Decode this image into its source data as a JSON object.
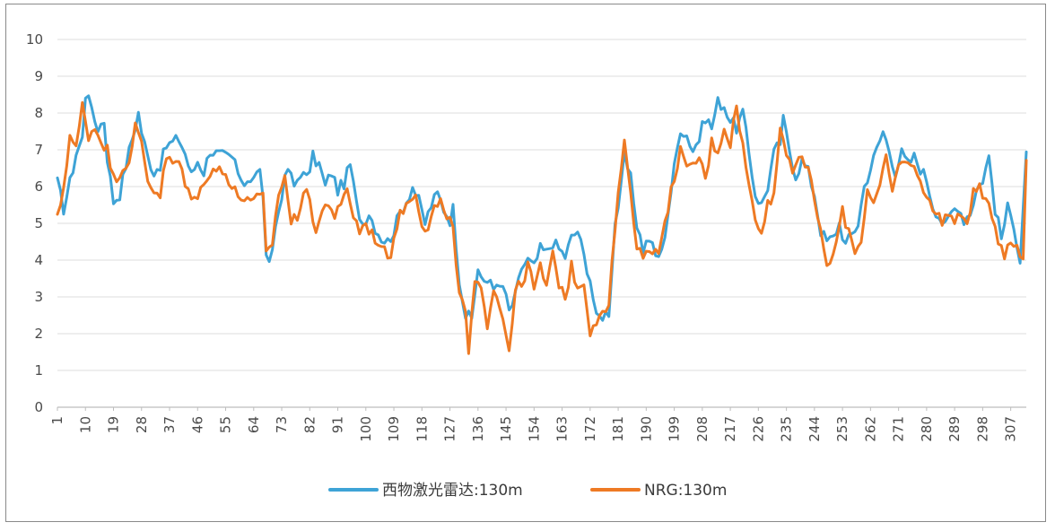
{
  "chart_data": {
    "type": "line",
    "title": "",
    "xlabel": "",
    "ylabel": "",
    "ylim": [
      0,
      10
    ],
    "yticks": [
      0,
      1,
      2,
      3,
      4,
      5,
      6,
      7,
      8,
      9,
      10
    ],
    "xlim": [
      1,
      312
    ],
    "xticks": [
      1,
      10,
      19,
      28,
      37,
      46,
      55,
      64,
      73,
      82,
      91,
      100,
      109,
      118,
      127,
      136,
      145,
      154,
      163,
      172,
      181,
      190,
      199,
      208,
      217,
      226,
      235,
      244,
      253,
      262,
      271,
      280,
      289,
      298,
      307
    ],
    "grid": "horizontal",
    "legend_position": "bottom",
    "series": [
      {
        "name": "西物激光雷达:130m",
        "color": "#3ea3d6",
        "anchors": [
          [
            1,
            6.1
          ],
          [
            3,
            5.4
          ],
          [
            5,
            6.1
          ],
          [
            7,
            6.9
          ],
          [
            9,
            7.3
          ],
          [
            10,
            8.5
          ],
          [
            11,
            8.6
          ],
          [
            12,
            8.0
          ],
          [
            14,
            7.6
          ],
          [
            16,
            7.8
          ],
          [
            17,
            6.8
          ],
          [
            19,
            5.6
          ],
          [
            21,
            5.8
          ],
          [
            23,
            6.6
          ],
          [
            25,
            7.3
          ],
          [
            27,
            8.0
          ],
          [
            28,
            7.5
          ],
          [
            30,
            6.8
          ],
          [
            32,
            6.4
          ],
          [
            34,
            6.6
          ],
          [
            36,
            7.1
          ],
          [
            38,
            7.2
          ],
          [
            40,
            7.3
          ],
          [
            42,
            6.9
          ],
          [
            44,
            6.3
          ],
          [
            46,
            6.7
          ],
          [
            48,
            6.4
          ],
          [
            50,
            7.0
          ],
          [
            52,
            6.9
          ],
          [
            55,
            6.8
          ],
          [
            58,
            6.7
          ],
          [
            60,
            6.0
          ],
          [
            62,
            6.2
          ],
          [
            64,
            6.3
          ],
          [
            66,
            6.4
          ],
          [
            67,
            5.8
          ],
          [
            68,
            4.0
          ],
          [
            69,
            3.8
          ],
          [
            71,
            4.9
          ],
          [
            73,
            5.8
          ],
          [
            75,
            6.5
          ],
          [
            77,
            6.0
          ],
          [
            79,
            6.4
          ],
          [
            81,
            6.2
          ],
          [
            83,
            6.8
          ],
          [
            85,
            6.6
          ],
          [
            87,
            6.0
          ],
          [
            89,
            6.4
          ],
          [
            91,
            5.9
          ],
          [
            93,
            6.1
          ],
          [
            95,
            6.6
          ],
          [
            97,
            5.5
          ],
          [
            99,
            5.0
          ],
          [
            101,
            5.3
          ],
          [
            103,
            4.9
          ],
          [
            105,
            4.6
          ],
          [
            107,
            4.5
          ],
          [
            109,
            4.8
          ],
          [
            111,
            5.3
          ],
          [
            113,
            5.6
          ],
          [
            115,
            6.0
          ],
          [
            117,
            5.6
          ],
          [
            119,
            5.0
          ],
          [
            121,
            5.5
          ],
          [
            123,
            5.8
          ],
          [
            125,
            5.4
          ],
          [
            127,
            5.1
          ],
          [
            128,
            5.4
          ],
          [
            130,
            3.5
          ],
          [
            132,
            2.5
          ],
          [
            134,
            2.4
          ],
          [
            136,
            3.8
          ],
          [
            138,
            3.3
          ],
          [
            140,
            3.5
          ],
          [
            142,
            3.2
          ],
          [
            144,
            3.3
          ],
          [
            146,
            2.6
          ],
          [
            148,
            3.0
          ],
          [
            150,
            3.8
          ],
          [
            152,
            4.0
          ],
          [
            154,
            3.8
          ],
          [
            156,
            4.3
          ],
          [
            158,
            4.2
          ],
          [
            160,
            4.5
          ],
          [
            162,
            4.3
          ],
          [
            164,
            4.1
          ],
          [
            166,
            4.6
          ],
          [
            168,
            4.8
          ],
          [
            170,
            4.1
          ],
          [
            172,
            3.5
          ],
          [
            174,
            2.4
          ],
          [
            176,
            2.5
          ],
          [
            178,
            2.6
          ],
          [
            180,
            5.0
          ],
          [
            182,
            6.0
          ],
          [
            183,
            6.8
          ],
          [
            185,
            6.2
          ],
          [
            187,
            5.0
          ],
          [
            189,
            4.3
          ],
          [
            191,
            4.6
          ],
          [
            193,
            4.1
          ],
          [
            195,
            4.2
          ],
          [
            197,
            5.3
          ],
          [
            199,
            6.5
          ],
          [
            201,
            7.6
          ],
          [
            203,
            7.4
          ],
          [
            205,
            7.0
          ],
          [
            207,
            7.3
          ],
          [
            209,
            7.9
          ],
          [
            211,
            7.6
          ],
          [
            213,
            8.3
          ],
          [
            215,
            8.2
          ],
          [
            217,
            7.8
          ],
          [
            219,
            7.6
          ],
          [
            221,
            8.0
          ],
          [
            223,
            6.9
          ],
          [
            225,
            5.8
          ],
          [
            227,
            5.5
          ],
          [
            229,
            6.0
          ],
          [
            231,
            6.9
          ],
          [
            233,
            7.2
          ],
          [
            234,
            7.8
          ],
          [
            236,
            7.0
          ],
          [
            238,
            6.3
          ],
          [
            240,
            6.7
          ],
          [
            242,
            6.4
          ],
          [
            244,
            5.8
          ],
          [
            246,
            4.8
          ],
          [
            248,
            4.5
          ],
          [
            250,
            4.6
          ],
          [
            252,
            5.0
          ],
          [
            254,
            4.4
          ],
          [
            256,
            4.7
          ],
          [
            258,
            5.0
          ],
          [
            260,
            6.0
          ],
          [
            262,
            6.5
          ],
          [
            264,
            7.0
          ],
          [
            266,
            7.5
          ],
          [
            268,
            7.0
          ],
          [
            270,
            6.4
          ],
          [
            272,
            6.9
          ],
          [
            274,
            6.6
          ],
          [
            276,
            6.8
          ],
          [
            278,
            6.5
          ],
          [
            280,
            6.2
          ],
          [
            282,
            5.5
          ],
          [
            284,
            5.2
          ],
          [
            286,
            4.9
          ],
          [
            288,
            5.3
          ],
          [
            290,
            5.5
          ],
          [
            292,
            5.1
          ],
          [
            294,
            5.3
          ],
          [
            296,
            5.9
          ],
          [
            298,
            6.2
          ],
          [
            300,
            6.8
          ],
          [
            302,
            5.4
          ],
          [
            304,
            4.6
          ],
          [
            306,
            5.4
          ],
          [
            308,
            5.0
          ],
          [
            310,
            4.0
          ],
          [
            312,
            6.9
          ]
        ]
      },
      {
        "name": "NRG:130m",
        "color": "#ee7a24",
        "anchors": [
          [
            1,
            5.1
          ],
          [
            3,
            6.0
          ],
          [
            5,
            7.4
          ],
          [
            7,
            7.0
          ],
          [
            9,
            8.2
          ],
          [
            11,
            7.4
          ],
          [
            13,
            7.6
          ],
          [
            15,
            7.3
          ],
          [
            17,
            7.0
          ],
          [
            19,
            6.2
          ],
          [
            21,
            6.4
          ],
          [
            23,
            6.6
          ],
          [
            25,
            7.0
          ],
          [
            26,
            7.6
          ],
          [
            28,
            7.2
          ],
          [
            30,
            6.2
          ],
          [
            32,
            5.9
          ],
          [
            34,
            5.8
          ],
          [
            36,
            6.8
          ],
          [
            38,
            6.6
          ],
          [
            40,
            6.7
          ],
          [
            42,
            6.0
          ],
          [
            44,
            5.8
          ],
          [
            46,
            5.6
          ],
          [
            48,
            6.2
          ],
          [
            50,
            6.4
          ],
          [
            52,
            6.5
          ],
          [
            55,
            6.3
          ],
          [
            58,
            6.0
          ],
          [
            60,
            5.5
          ],
          [
            62,
            5.8
          ],
          [
            64,
            5.6
          ],
          [
            66,
            5.7
          ],
          [
            67,
            5.7
          ],
          [
            68,
            4.1
          ],
          [
            70,
            4.5
          ],
          [
            72,
            5.8
          ],
          [
            74,
            6.3
          ],
          [
            76,
            5.0
          ],
          [
            78,
            5.2
          ],
          [
            80,
            5.9
          ],
          [
            82,
            5.6
          ],
          [
            84,
            4.8
          ],
          [
            86,
            5.3
          ],
          [
            88,
            5.6
          ],
          [
            90,
            5.2
          ],
          [
            92,
            5.4
          ],
          [
            94,
            6.0
          ],
          [
            96,
            5.2
          ],
          [
            98,
            4.8
          ],
          [
            100,
            5.0
          ],
          [
            102,
            4.7
          ],
          [
            104,
            4.5
          ],
          [
            106,
            4.2
          ],
          [
            108,
            4.2
          ],
          [
            110,
            5.0
          ],
          [
            112,
            5.4
          ],
          [
            114,
            5.6
          ],
          [
            116,
            5.9
          ],
          [
            118,
            5.0
          ],
          [
            120,
            4.9
          ],
          [
            122,
            5.4
          ],
          [
            124,
            5.6
          ],
          [
            126,
            5.0
          ],
          [
            128,
            5.0
          ],
          [
            130,
            3.0
          ],
          [
            132,
            2.6
          ],
          [
            133,
            1.4
          ],
          [
            135,
            3.4
          ],
          [
            137,
            3.1
          ],
          [
            139,
            2.3
          ],
          [
            141,
            3.3
          ],
          [
            143,
            2.8
          ],
          [
            145,
            2.0
          ],
          [
            146,
            1.6
          ],
          [
            148,
            3.2
          ],
          [
            150,
            3.3
          ],
          [
            152,
            3.9
          ],
          [
            154,
            3.2
          ],
          [
            156,
            3.8
          ],
          [
            158,
            3.3
          ],
          [
            160,
            4.1
          ],
          [
            162,
            3.4
          ],
          [
            164,
            3.0
          ],
          [
            166,
            3.8
          ],
          [
            168,
            3.3
          ],
          [
            170,
            3.4
          ],
          [
            172,
            2.1
          ],
          [
            174,
            2.4
          ],
          [
            176,
            2.5
          ],
          [
            178,
            2.8
          ],
          [
            180,
            4.8
          ],
          [
            182,
            6.6
          ],
          [
            183,
            7.1
          ],
          [
            185,
            6.0
          ],
          [
            187,
            4.3
          ],
          [
            189,
            4.1
          ],
          [
            191,
            4.4
          ],
          [
            193,
            4.2
          ],
          [
            195,
            4.5
          ],
          [
            197,
            5.4
          ],
          [
            199,
            6.3
          ],
          [
            201,
            7.0
          ],
          [
            203,
            6.4
          ],
          [
            205,
            6.6
          ],
          [
            207,
            6.8
          ],
          [
            209,
            6.2
          ],
          [
            211,
            7.2
          ],
          [
            213,
            7.0
          ],
          [
            215,
            7.6
          ],
          [
            217,
            7.2
          ],
          [
            219,
            8.2
          ],
          [
            221,
            7.1
          ],
          [
            223,
            6.0
          ],
          [
            225,
            5.1
          ],
          [
            227,
            4.9
          ],
          [
            229,
            5.5
          ],
          [
            231,
            5.8
          ],
          [
            233,
            7.6
          ],
          [
            235,
            7.0
          ],
          [
            237,
            6.5
          ],
          [
            239,
            6.8
          ],
          [
            241,
            6.5
          ],
          [
            243,
            6.2
          ],
          [
            245,
            5.2
          ],
          [
            247,
            4.2
          ],
          [
            249,
            3.8
          ],
          [
            251,
            4.5
          ],
          [
            253,
            5.3
          ],
          [
            255,
            4.8
          ],
          [
            257,
            4.3
          ],
          [
            259,
            4.5
          ],
          [
            261,
            6.0
          ],
          [
            263,
            5.5
          ],
          [
            265,
            6.0
          ],
          [
            267,
            6.7
          ],
          [
            269,
            5.9
          ],
          [
            271,
            6.5
          ],
          [
            273,
            6.8
          ],
          [
            275,
            6.5
          ],
          [
            277,
            6.4
          ],
          [
            279,
            6.0
          ],
          [
            281,
            5.5
          ],
          [
            283,
            5.3
          ],
          [
            285,
            5.1
          ],
          [
            287,
            5.3
          ],
          [
            289,
            5.0
          ],
          [
            291,
            5.2
          ],
          [
            293,
            5.1
          ],
          [
            295,
            5.8
          ],
          [
            297,
            6.0
          ],
          [
            299,
            5.5
          ],
          [
            301,
            5.3
          ],
          [
            303,
            4.6
          ],
          [
            305,
            4.2
          ],
          [
            307,
            4.6
          ],
          [
            309,
            4.3
          ],
          [
            311,
            4.0
          ],
          [
            312,
            6.8
          ]
        ]
      }
    ]
  }
}
